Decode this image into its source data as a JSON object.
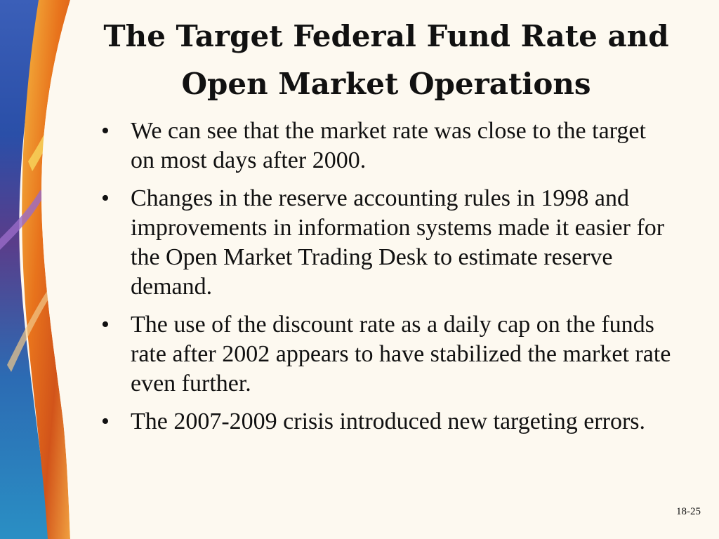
{
  "slide": {
    "title_line1": "The Target Federal Fund Rate and",
    "title_line2": "Open Market Operations",
    "bullets": [
      "We can see that the market rate was close to the target on most days after 2000.",
      "Changes in the reserve accounting rules in 1998 and improvements in information systems made it easier for the Open Market Trading Desk to estimate reserve demand.",
      "The use of the discount rate as a daily cap on the funds rate after 2002 appears to have stabilized the market rate even further.",
      "The 2007-2009 crisis introduced new targeting errors."
    ],
    "bullet_glyph": "•",
    "number": "18-25"
  },
  "colors": {
    "background": "#fdf9f0",
    "text": "#111111",
    "art_blue": "#2a4fa8",
    "art_orange": "#e8731c"
  }
}
